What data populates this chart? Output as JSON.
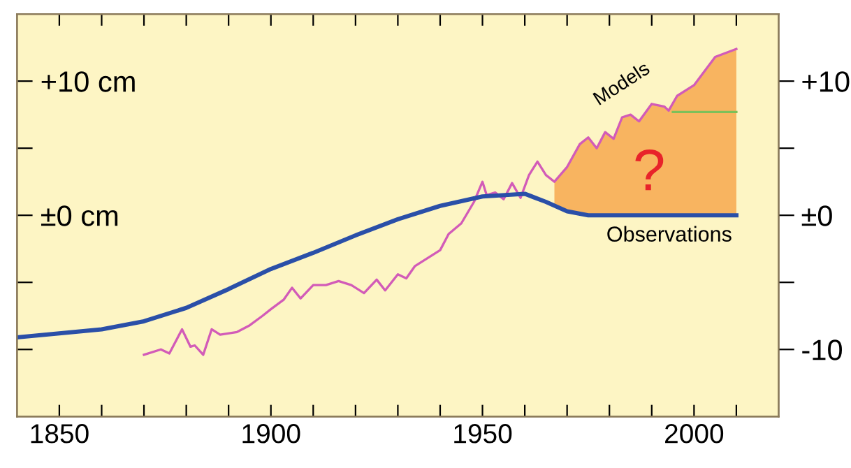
{
  "chart_data": {
    "type": "line",
    "xlim": [
      1840,
      2020
    ],
    "ylim": [
      -15,
      15
    ],
    "y2lim": [
      -15,
      15
    ],
    "xticks": [
      {
        "value": 1850,
        "label": "1850"
      },
      {
        "value": 1860,
        "label": null
      },
      {
        "value": 1870,
        "label": null
      },
      {
        "value": 1880,
        "label": null
      },
      {
        "value": 1890,
        "label": null
      },
      {
        "value": 1900,
        "label": "1900"
      },
      {
        "value": 1910,
        "label": null
      },
      {
        "value": 1920,
        "label": null
      },
      {
        "value": 1930,
        "label": null
      },
      {
        "value": 1940,
        "label": null
      },
      {
        "value": 1950,
        "label": "1950"
      },
      {
        "value": 1960,
        "label": null
      },
      {
        "value": 1970,
        "label": null
      },
      {
        "value": 1980,
        "label": null
      },
      {
        "value": 1990,
        "label": null
      },
      {
        "value": 2000,
        "label": "2000"
      },
      {
        "value": 2010,
        "label": null
      }
    ],
    "yticks": [
      {
        "value": -10,
        "label": null
      },
      {
        "value": -5,
        "label": null
      },
      {
        "value": 0,
        "label": "±0 cm"
      },
      {
        "value": 5,
        "label": null
      },
      {
        "value": 10,
        "label": "+10 cm"
      }
    ],
    "y2ticks": [
      {
        "value": -10,
        "label": "-10"
      },
      {
        "value": -5,
        "label": null
      },
      {
        "value": 0,
        "label": "±0"
      },
      {
        "value": 5,
        "label": null
      },
      {
        "value": 10,
        "label": "+10"
      }
    ],
    "grid": false,
    "legend": false,
    "marker": "none",
    "line_style": "solid",
    "annotations": [
      "?"
    ],
    "series": [
      {
        "type": "area",
        "color": "#f8b460",
        "x": [
          1967,
          1970,
          1973,
          1975,
          1977,
          1979,
          1981,
          1983,
          1985,
          1987,
          1990,
          1993,
          1994,
          1996,
          2000,
          2005,
          2010
        ],
        "values": [
          2.5,
          3.6,
          5.3,
          5.8,
          5.0,
          6.2,
          5.7,
          7.3,
          7.5,
          7.0,
          8.3,
          8.1,
          7.8,
          8.9,
          9.7,
          11.8,
          12.4
        ]
      },
      {
        "name": "Models",
        "color": "#d25bb8",
        "x": [
          1870,
          1874,
          1876,
          1879,
          1881,
          1882,
          1884,
          1886,
          1888,
          1892,
          1895,
          1898,
          1900,
          1903,
          1905,
          1907,
          1910,
          1913,
          1916,
          1919,
          1922,
          1925,
          1927,
          1930,
          1932,
          1934,
          1937,
          1940,
          1942,
          1945,
          1948,
          1950,
          1951,
          1953,
          1955,
          1957,
          1959,
          1961,
          1963,
          1965,
          1967,
          1970,
          1973,
          1975,
          1977,
          1979,
          1981,
          1983,
          1985,
          1987,
          1990,
          1993,
          1994,
          1996,
          2000,
          2005,
          2010
        ],
        "values": [
          -10.4,
          -10.0,
          -10.3,
          -8.5,
          -9.8,
          -9.7,
          -10.4,
          -8.5,
          -8.9,
          -8.7,
          -8.2,
          -7.5,
          -7.0,
          -6.3,
          -5.4,
          -6.2,
          -5.2,
          -5.2,
          -4.9,
          -5.2,
          -5.8,
          -4.8,
          -5.6,
          -4.4,
          -4.7,
          -3.8,
          -3.2,
          -2.6,
          -1.4,
          -0.6,
          1.0,
          2.5,
          1.5,
          1.7,
          1.2,
          2.4,
          1.3,
          3.0,
          4.0,
          3.0,
          2.5,
          3.6,
          5.3,
          5.8,
          5.0,
          6.2,
          5.7,
          7.3,
          7.5,
          7.0,
          8.3,
          8.1,
          7.8,
          8.9,
          9.7,
          11.8,
          12.4
        ]
      },
      {
        "name": "Observations",
        "color": "#2a4fa8",
        "x": [
          1840,
          1850,
          1860,
          1870,
          1880,
          1890,
          1900,
          1910,
          1920,
          1930,
          1940,
          1950,
          1960,
          1965,
          1970,
          1975,
          2010
        ],
        "values": [
          -9.1,
          -8.8,
          -8.5,
          -7.9,
          -6.9,
          -5.5,
          -4.0,
          -2.8,
          -1.5,
          -0.3,
          0.7,
          1.4,
          1.6,
          1.0,
          0.3,
          0,
          0
        ]
      },
      {
        "color": "#7cc05a",
        "x": [
          1995,
          2010
        ],
        "values": [
          7.7,
          7.7
        ]
      }
    ]
  }
}
